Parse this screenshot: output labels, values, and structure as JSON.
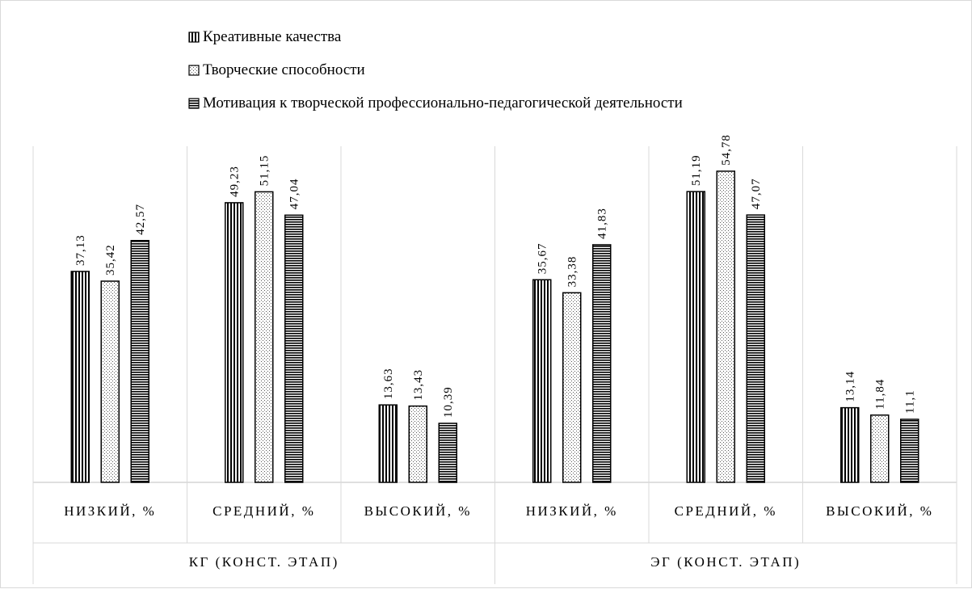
{
  "chart_data": {
    "type": "bar",
    "title": "",
    "xlabel": "",
    "ylabel": "",
    "ylim": [
      0,
      60
    ],
    "grid": false,
    "legend_position": "top-left",
    "groups": [
      {
        "label": "КГ (КОНСТ. ЭТАП)",
        "categories": [
          "НИЗКИЙ, %",
          "СРЕДНИЙ, %",
          "ВЫСОКИЙ, %"
        ]
      },
      {
        "label": "ЭГ (КОНСТ. ЭТАП)",
        "categories": [
          "НИЗКИЙ, %",
          "СРЕДНИЙ, %",
          "ВЫСОКИЙ, %"
        ]
      }
    ],
    "categories": [
      "НИЗКИЙ, %",
      "СРЕДНИЙ, %",
      "ВЫСОКИЙ, %",
      "НИЗКИЙ, %",
      "СРЕДНИЙ, %",
      "ВЫСОКИЙ, %"
    ],
    "series": [
      {
        "name": "Креативные качества",
        "pattern": "vertical",
        "values": [
          37.13,
          49.23,
          13.63,
          35.67,
          51.19,
          13.14
        ],
        "labels": [
          "37,13",
          "49,23",
          "13,63",
          "35,67",
          "51,19",
          "13,14"
        ]
      },
      {
        "name": "Творческие способности",
        "pattern": "dots",
        "values": [
          35.42,
          51.15,
          13.43,
          33.38,
          54.78,
          11.84
        ],
        "labels": [
          "35,42",
          "51,15",
          "13,43",
          "33,38",
          "54,78",
          "11,84"
        ]
      },
      {
        "name": "Мотивация к творческой профессионально-педагогической деятельности",
        "pattern": "horizontal",
        "values": [
          42.57,
          47.04,
          10.39,
          41.83,
          47.07,
          11.1
        ],
        "labels": [
          "42,57",
          "47,04",
          "10,39",
          "41,83",
          "47,07",
          "11,1"
        ]
      }
    ]
  }
}
